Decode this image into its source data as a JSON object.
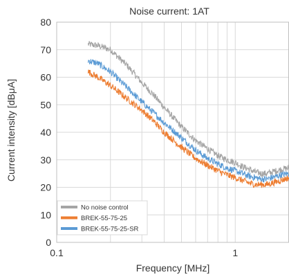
{
  "chart_data": {
    "type": "line",
    "title": "Noise current: 1AT",
    "xlabel": "Frequency [MHz]",
    "ylabel": "Current intensity [dBμA]",
    "x_scale": "log",
    "xlim": [
      0.1,
      2
    ],
    "ylim": [
      0,
      80
    ],
    "xticks": [
      0.1,
      1
    ],
    "xtick_labels": [
      "0.1",
      "1"
    ],
    "yticks": [
      0,
      10,
      20,
      30,
      40,
      50,
      60,
      70,
      80
    ],
    "grid": true,
    "legend_position": "bottom-left",
    "series": [
      {
        "name": "No noise control",
        "color": "#a5a5a5",
        "x": [
          0.15,
          0.17,
          0.2,
          0.25,
          0.3,
          0.35,
          0.4,
          0.5,
          0.6,
          0.7,
          0.8,
          0.9,
          1.0,
          1.1,
          1.2,
          1.3,
          1.4,
          1.5,
          1.6,
          1.7,
          1.8,
          2.0
        ],
        "y": [
          72,
          71.5,
          70,
          64,
          58,
          53.5,
          49,
          42,
          37,
          34,
          31.5,
          30,
          29,
          27.5,
          26.5,
          25.5,
          25,
          25,
          25.5,
          26,
          26.5,
          27
        ]
      },
      {
        "name": "BREK-55-75-25",
        "color": "#ed7d31",
        "x": [
          0.15,
          0.17,
          0.2,
          0.25,
          0.3,
          0.35,
          0.4,
          0.5,
          0.6,
          0.7,
          0.8,
          0.9,
          1.0,
          1.1,
          1.2,
          1.3,
          1.4,
          1.5,
          1.6,
          1.7,
          1.8,
          2.0
        ],
        "y": [
          62,
          60,
          57,
          52,
          48,
          44,
          40,
          34.5,
          30.5,
          28,
          26,
          24.5,
          23.5,
          22.5,
          21.5,
          21,
          21,
          21,
          21.5,
          22,
          22.5,
          23.5
        ]
      },
      {
        "name": "BREK-55-75-25-SR",
        "color": "#5b9bd5",
        "x": [
          0.15,
          0.17,
          0.2,
          0.25,
          0.3,
          0.35,
          0.4,
          0.5,
          0.6,
          0.7,
          0.8,
          0.9,
          1.0,
          1.1,
          1.2,
          1.3,
          1.4,
          1.5,
          1.6,
          1.7,
          1.8,
          2.0
        ],
        "y": [
          66,
          65,
          62,
          56,
          51,
          47,
          43.5,
          38,
          33.5,
          30.5,
          28.5,
          27,
          26,
          25,
          24,
          23.5,
          23,
          23,
          23.5,
          24,
          24.5,
          25
        ]
      }
    ]
  }
}
